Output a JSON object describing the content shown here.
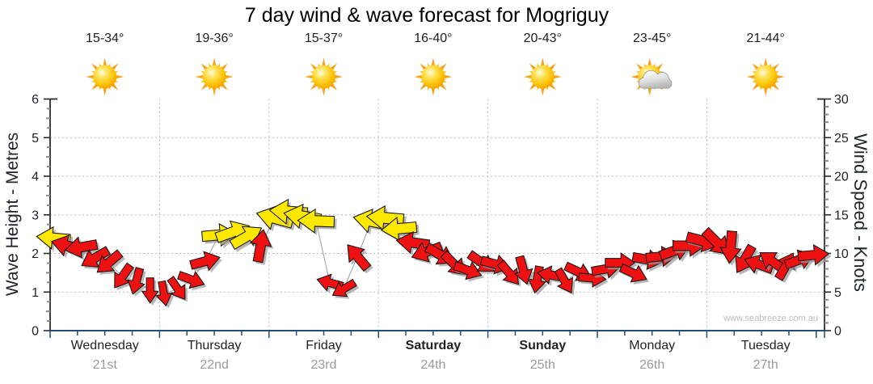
{
  "title": "7 day wind & wave forecast for Mogriguy",
  "watermark": "www.seabreeze.com.au",
  "days": [
    {
      "name": "Wednesday",
      "date": "21st",
      "temp": "15-34°",
      "icon": "sun",
      "bold": false
    },
    {
      "name": "Thursday",
      "date": "22nd",
      "temp": "19-36°",
      "icon": "sun",
      "bold": false
    },
    {
      "name": "Friday",
      "date": "23rd",
      "temp": "15-37°",
      "icon": "sun",
      "bold": false
    },
    {
      "name": "Saturday",
      "date": "24th",
      "temp": "16-40°",
      "icon": "sun",
      "bold": true
    },
    {
      "name": "Sunday",
      "date": "25th",
      "temp": "20-43°",
      "icon": "sun",
      "bold": true
    },
    {
      "name": "Monday",
      "date": "26th",
      "temp": "23-45°",
      "icon": "sun-cloud",
      "bold": false
    },
    {
      "name": "Tuesday",
      "date": "27th",
      "temp": "21-44°",
      "icon": "sun",
      "bold": false
    }
  ],
  "left_axis": {
    "label": "Wave Height - Metres",
    "ticks": [
      0,
      1,
      2,
      3,
      4,
      5,
      6
    ],
    "range": [
      0,
      6
    ]
  },
  "right_axis": {
    "label": "Wind Speed - Knots",
    "ticks": [
      0,
      5,
      10,
      15,
      20,
      25,
      30
    ],
    "range": [
      0,
      30
    ]
  },
  "colors": {
    "arrow_low": "#ee1111",
    "arrow_high": "#ffe800",
    "axis_bottom": "#1f4e79",
    "axis_vertical": "#2a2a32",
    "grid": "#b9b9b9",
    "minor_tick": "#8a8a8a",
    "connector": "#a0a0a0",
    "date_text": "#9a9a9a",
    "watermark_text": "#bdbdbd"
  },
  "chart_data": {
    "type": "wind-arrows",
    "title": "7 day wind & wave forecast for Mogriguy",
    "x_categories": [
      "Wednesday 21st",
      "Thursday 22nd",
      "Friday 23rd",
      "Saturday 24th",
      "Sunday 25th",
      "Monday 26th",
      "Tuesday 27th"
    ],
    "points_per_day": 8,
    "y_left_label": "Wave Height - Metres",
    "y_left_range": [
      0,
      6
    ],
    "y_right_label": "Wind Speed - Knots",
    "y_right_range": [
      0,
      30
    ],
    "yellow_threshold_knots": 12,
    "series_format": [
      "wind_speed_knots",
      "arrow_direction_screen_deg_0_east_cw"
    ],
    "series": [
      [
        12.0,
        185
      ],
      [
        11.0,
        195
      ],
      [
        10.8,
        170
      ],
      [
        9.4,
        150
      ],
      [
        8.8,
        140
      ],
      [
        7.0,
        125
      ],
      [
        6.4,
        105
      ],
      [
        5.2,
        90
      ],
      [
        4.8,
        80
      ],
      [
        5.4,
        55
      ],
      [
        6.6,
        20
      ],
      [
        9.0,
        345
      ],
      [
        12.4,
        355
      ],
      [
        12.8,
        340
      ],
      [
        12.2,
        330
      ],
      [
        11.0,
        280
      ],
      [
        14.6,
        195
      ],
      [
        15.4,
        185
      ],
      [
        14.8,
        190
      ],
      [
        14.2,
        182
      ],
      [
        6.2,
        195
      ],
      [
        5.4,
        150
      ],
      [
        9.6,
        230
      ],
      [
        14.2,
        192
      ],
      [
        14.6,
        185
      ],
      [
        13.2,
        175
      ],
      [
        11.4,
        188
      ],
      [
        10.2,
        160
      ],
      [
        9.8,
        30
      ],
      [
        8.6,
        45
      ],
      [
        7.8,
        20
      ],
      [
        8.8,
        35
      ],
      [
        8.6,
        15
      ],
      [
        7.4,
        50
      ],
      [
        7.8,
        75
      ],
      [
        6.6,
        100
      ],
      [
        7.2,
        190
      ],
      [
        6.4,
        60
      ],
      [
        7.6,
        25
      ],
      [
        6.8,
        5
      ],
      [
        8.0,
        350
      ],
      [
        8.8,
        0
      ],
      [
        7.4,
        25
      ],
      [
        9.2,
        10
      ],
      [
        9.6,
        355
      ],
      [
        10.4,
        340
      ],
      [
        11.0,
        0
      ],
      [
        11.6,
        15
      ],
      [
        11.4,
        45
      ],
      [
        10.8,
        95
      ],
      [
        9.2,
        120
      ],
      [
        8.6,
        200
      ],
      [
        9.0,
        215
      ],
      [
        8.4,
        300
      ],
      [
        9.2,
        340
      ],
      [
        9.8,
        355
      ]
    ]
  }
}
